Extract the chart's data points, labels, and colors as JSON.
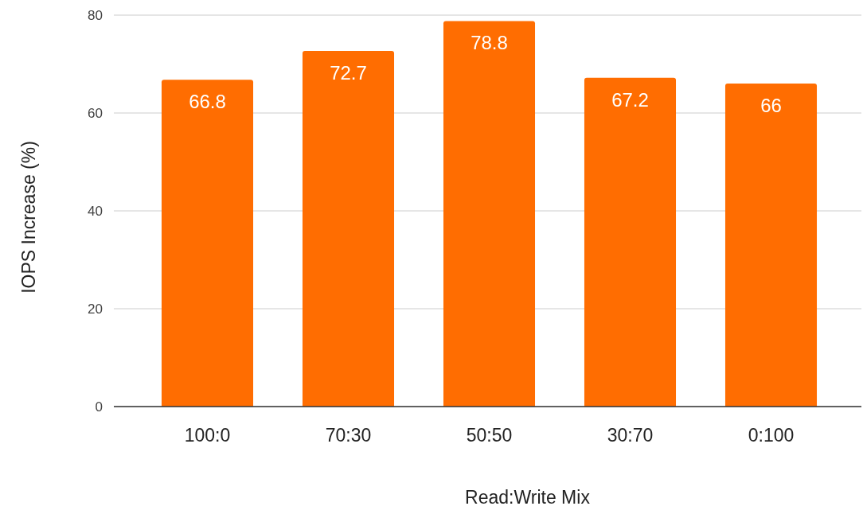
{
  "chart_data": {
    "type": "bar",
    "xlabel": "Read:Write Mix",
    "ylabel": "IOPS Increase (%)",
    "categories": [
      "100:0",
      "70:30",
      "50:50",
      "30:70",
      "0:100"
    ],
    "values": [
      66.8,
      72.7,
      78.8,
      67.2,
      66
    ],
    "color": "#ff6d01",
    "ylim": [
      0,
      80
    ],
    "yticks": [
      0,
      20,
      40,
      60,
      80
    ],
    "grid": "y",
    "data_labels": true
  }
}
